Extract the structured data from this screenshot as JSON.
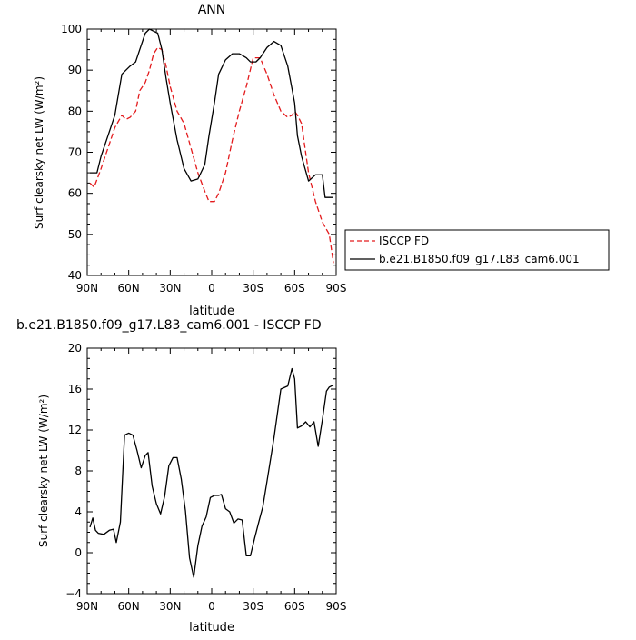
{
  "chart_data": [
    {
      "type": "line",
      "title": "ANN",
      "xlabel": "latitude",
      "ylabel": "Surf clearsky net LW (W/m²)",
      "xlim": [
        90,
        -90
      ],
      "ylim": [
        40,
        100
      ],
      "x_ticks": [
        90,
        60,
        30,
        0,
        -30,
        -60,
        -90
      ],
      "x_tick_labels": [
        "90N",
        "60N",
        "30N",
        "0",
        "30S",
        "60S",
        "90S"
      ],
      "y_ticks": [
        40,
        50,
        60,
        70,
        80,
        90,
        100
      ],
      "y_tick_labels": [
        "40",
        "50",
        "60",
        "70",
        "80",
        "90",
        "100"
      ],
      "legend_position": "right",
      "grid": false,
      "series": [
        {
          "name": "ISCCP FD",
          "color": "#e31a1c",
          "dash": true,
          "x": [
            88,
            85,
            80,
            75,
            70,
            65,
            62,
            59,
            55,
            52,
            48,
            45,
            42,
            39,
            36,
            33,
            30,
            25,
            20,
            15,
            10,
            5,
            2,
            -2,
            -5,
            -10,
            -15,
            -20,
            -25,
            -30,
            -35,
            -40,
            -45,
            -50,
            -55,
            -58,
            -60,
            -62,
            -65,
            -70,
            -75,
            -80,
            -85,
            -88
          ],
          "values": [
            62.5,
            61.5,
            66,
            71,
            76,
            79,
            78,
            78.5,
            80,
            85,
            87,
            90,
            94,
            95.5,
            95,
            91,
            86,
            80,
            77,
            71,
            65,
            60.5,
            58,
            58,
            60,
            65,
            73,
            80,
            86,
            93,
            93,
            89,
            84,
            80,
            78.5,
            79,
            80,
            79,
            77,
            65,
            58,
            53,
            50,
            43
          ]
        },
        {
          "name": "b.e21.B1850.f09_g17.L83_cam6.001",
          "color": "#000000",
          "dash": false,
          "x": [
            88,
            83,
            80,
            75,
            70,
            65,
            62,
            59,
            55,
            52,
            48,
            45,
            42,
            39,
            36,
            33,
            30,
            25,
            20,
            15,
            10,
            5,
            2,
            -2,
            -5,
            -10,
            -15,
            -20,
            -25,
            -28,
            -32,
            -35,
            -40,
            -45,
            -50,
            -55,
            -60,
            -62,
            -65,
            -70,
            -75,
            -80,
            -82,
            -85,
            -88
          ],
          "values": [
            65,
            65,
            69,
            74,
            79,
            89,
            90,
            91,
            92,
            95,
            99,
            100,
            99.5,
            99,
            95,
            88,
            82,
            73,
            66,
            63,
            63.5,
            67,
            74,
            82,
            89,
            92.5,
            94,
            94,
            93,
            92,
            92,
            93,
            95.5,
            97,
            96,
            91,
            82,
            74,
            69,
            63,
            64.5,
            64.5,
            59,
            59,
            59
          ]
        }
      ]
    },
    {
      "type": "line",
      "title": "b.e21.B1850.f09_g17.L83_cam6.001 - ISCCP FD",
      "xlabel": "latitude",
      "ylabel": "Surf clearsky net LW (W/m²)",
      "xlim": [
        90,
        -90
      ],
      "ylim": [
        -4,
        20
      ],
      "x_ticks": [
        90,
        60,
        30,
        0,
        -30,
        -60,
        -90
      ],
      "x_tick_labels": [
        "90N",
        "60N",
        "30N",
        "0",
        "30S",
        "60S",
        "90S"
      ],
      "y_ticks": [
        -4,
        0,
        4,
        8,
        12,
        16,
        20
      ],
      "y_tick_labels": [
        "−4",
        "0",
        "4",
        "8",
        "12",
        "16",
        "20"
      ],
      "grid": false,
      "series": [
        {
          "color": "#000000",
          "dash": false,
          "x": [
            88,
            86,
            84,
            82,
            78,
            74,
            71,
            69,
            66,
            63,
            60,
            57,
            54,
            51,
            48,
            46,
            43,
            40,
            37,
            34,
            31,
            28,
            25,
            22,
            19,
            16,
            13,
            10,
            7,
            4,
            1,
            -2,
            -5,
            -7,
            -10,
            -13,
            -16,
            -19,
            -22,
            -25,
            -28,
            -31,
            -34,
            -37,
            -40,
            -45,
            -50,
            -55,
            -58,
            -60,
            -62,
            -65,
            -68,
            -71,
            -74,
            -77,
            -80,
            -83,
            -85,
            -88
          ],
          "values": [
            2.5,
            3.4,
            2.2,
            1.9,
            1.8,
            2.2,
            2.3,
            1,
            3,
            11.5,
            11.7,
            11.5,
            10,
            8.3,
            9.5,
            9.8,
            6.5,
            4.8,
            3.8,
            5.5,
            8.5,
            9.3,
            9.3,
            7.2,
            4.1,
            -0.5,
            -2.4,
            0.7,
            2.6,
            3.5,
            5.4,
            5.6,
            5.6,
            5.7,
            4.3,
            4,
            2.9,
            3.3,
            3.2,
            -0.3,
            -0.3,
            1.4,
            3,
            4.5,
            7,
            11.2,
            16,
            16.3,
            18,
            17,
            12.2,
            12.4,
            12.8,
            12.3,
            12.8,
            10.4,
            13,
            15.8,
            16.2,
            16.4
          ]
        }
      ]
    }
  ]
}
